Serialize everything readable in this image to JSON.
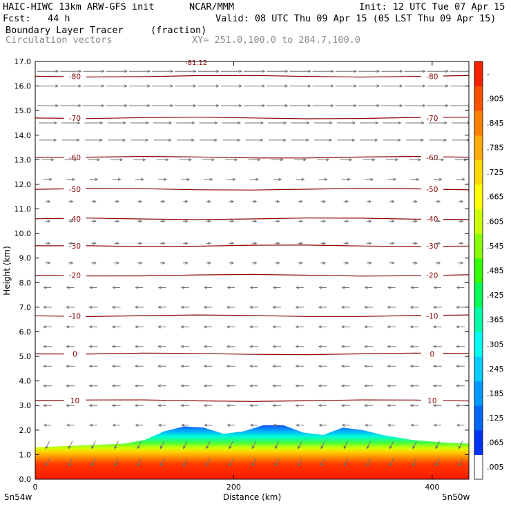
{
  "header": {
    "model": "HAIC-HIWC 13km ARW-GFS init",
    "center": "NCAR/MMM",
    "init": "Init: 12 UTC Tue 07 Apr 15",
    "fcst": "Fcst:   44 h",
    "valid": "Valid: 08 UTC Thu 09 Apr 15 (05 LST Thu 09 Apr 15)",
    "field1_name": "Boundary Layer Tracer",
    "field1_units": "(fraction)",
    "field2_name": "Circulation vectors",
    "xy_range": "XY= 251.0,100.0 to 284.7,100.0"
  },
  "chart_data": {
    "type": "heatmap",
    "title": "Boundary Layer Tracer",
    "xlabel": "Distance (km)",
    "ylabel": "Height (km)",
    "xlim": [
      0,
      437
    ],
    "ylim": [
      0,
      17
    ],
    "x_ticks": [
      0,
      200,
      400
    ],
    "y_ticks": [
      "0.0",
      "1.0",
      "2.0",
      "3.0",
      "4.0",
      "5.0",
      "6.0",
      "7.0",
      "8.0",
      "9.0",
      "10.0",
      "11.0",
      "12.0",
      "13.0",
      "14.0",
      "15.0",
      "16.0",
      "17.0"
    ],
    "x_endpoint_labels": [
      "5n54w",
      "5n50w"
    ],
    "colorbar_labels": [
      ".005",
      ".065",
      ".125",
      ".185",
      ".245",
      ".305",
      ".365",
      ".425",
      ".485",
      ".545",
      ".605",
      ".665",
      ".725",
      ".785",
      ".845",
      ".905",
      "-"
    ],
    "colorbar_colors": [
      "#ffffff",
      "#0033ff",
      "#0066ff",
      "#0099ff",
      "#00ccff",
      "#00ffee",
      "#00ffaa",
      "#00ff55",
      "#33ff00",
      "#88ff00",
      "#ccff00",
      "#ffff00",
      "#ffd700",
      "#ffaa00",
      "#ff8000",
      "#ff5000",
      "#ff2000"
    ],
    "tracer_top_km": [
      [
        0,
        1.3
      ],
      [
        30,
        1.35
      ],
      [
        60,
        1.4
      ],
      [
        90,
        1.45
      ],
      [
        110,
        1.6
      ],
      [
        130,
        1.95
      ],
      [
        150,
        2.15
      ],
      [
        170,
        2.1
      ],
      [
        190,
        1.85
      ],
      [
        210,
        1.95
      ],
      [
        230,
        2.2
      ],
      [
        250,
        2.2
      ],
      [
        270,
        1.9
      ],
      [
        290,
        1.8
      ],
      [
        310,
        2.1
      ],
      [
        330,
        2.0
      ],
      [
        350,
        1.8
      ],
      [
        380,
        1.6
      ],
      [
        410,
        1.5
      ],
      [
        437,
        1.45
      ]
    ],
    "isotherm_labels": [
      "-80",
      "-70",
      "-60",
      "-50",
      "-40",
      "-30",
      "-20",
      "-10",
      "0",
      "10"
    ],
    "isotherms": [
      {
        "label": "-80",
        "height_km": 16.4
      },
      {
        "label": "-70",
        "height_km": 14.7
      },
      {
        "label": "-60",
        "height_km": 13.1
      },
      {
        "label": "-50",
        "height_km": 11.8
      },
      {
        "label": "-40",
        "height_km": 10.6
      },
      {
        "label": "-30",
        "height_km": 9.5
      },
      {
        "label": "-20",
        "height_km": 8.3
      },
      {
        "label": "-10",
        "height_km": 6.65
      },
      {
        "label": "0",
        "height_km": 5.1
      },
      {
        "label": "10",
        "height_km": 3.2
      }
    ],
    "top_annotation": "-81.12",
    "wind_vectors": [
      {
        "height_km": 16.6,
        "speed": 1.0,
        "dir": "east"
      },
      {
        "height_km": 16.0,
        "speed": 1.0,
        "dir": "east"
      },
      {
        "height_km": 15.2,
        "speed": 1.0,
        "dir": "east"
      },
      {
        "height_km": 14.5,
        "speed": 0.85,
        "dir": "east"
      },
      {
        "height_km": 13.8,
        "speed": 0.8,
        "dir": "east"
      },
      {
        "height_km": 13.0,
        "speed": 0.5,
        "dir": "east"
      },
      {
        "height_km": 12.2,
        "speed": 0.3,
        "dir": "east"
      },
      {
        "height_km": 11.3,
        "speed": 0.1,
        "dir": "east"
      },
      {
        "height_km": 10.5,
        "speed": 0.1,
        "dir": "east"
      },
      {
        "height_km": 9.6,
        "speed": 0.1,
        "dir": "east"
      },
      {
        "height_km": 8.8,
        "speed": 0.1,
        "dir": "east"
      },
      {
        "height_km": 7.8,
        "speed": 0.25,
        "dir": "west"
      },
      {
        "height_km": 7.0,
        "speed": 0.3,
        "dir": "west"
      },
      {
        "height_km": 6.2,
        "speed": 0.3,
        "dir": "west"
      },
      {
        "height_km": 5.4,
        "speed": 0.3,
        "dir": "west"
      },
      {
        "height_km": 4.6,
        "speed": 0.3,
        "dir": "west"
      },
      {
        "height_km": 3.8,
        "speed": 0.3,
        "dir": "west"
      },
      {
        "height_km": 3.0,
        "speed": 0.3,
        "dir": "west"
      },
      {
        "height_km": 2.2,
        "speed": 0.25,
        "dir": "west"
      },
      {
        "height_km": 1.4,
        "speed": 0.3,
        "dir": "southwest"
      },
      {
        "height_km": 0.7,
        "speed": 0.3,
        "dir": "southwest"
      }
    ]
  }
}
